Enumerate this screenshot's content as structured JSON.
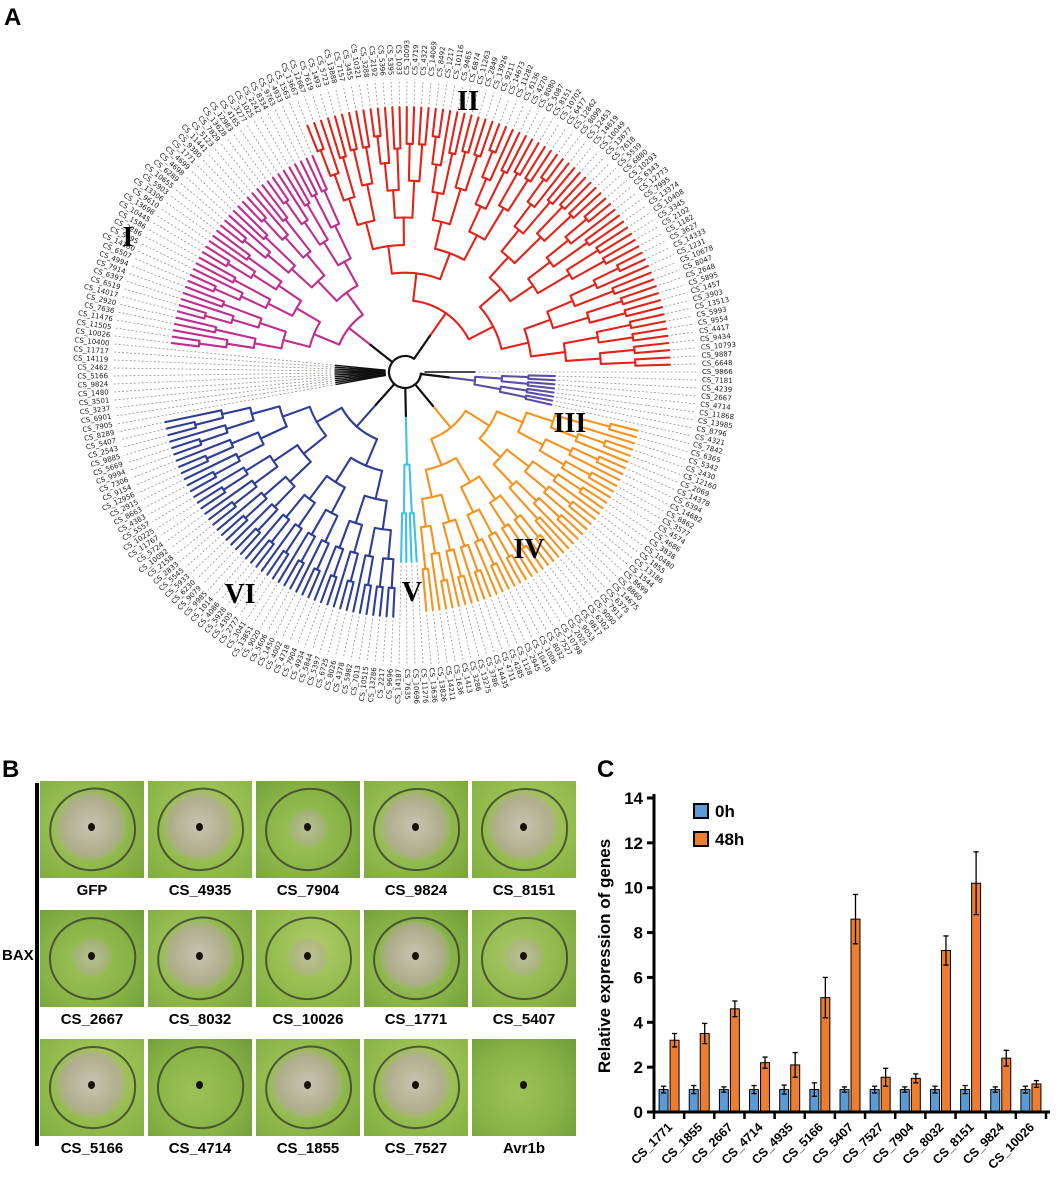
{
  "figure": {
    "panel_a_label": "A",
    "panel_b_label": "B",
    "panel_c_label": "C"
  },
  "tree": {
    "type": "circular-phylogeny",
    "clades": [
      {
        "numeral": "I",
        "color": "#bf2d8e",
        "start": 119,
        "end": 157
      },
      {
        "numeral": "II",
        "color": "#e32219",
        "start": 158,
        "end": 228
      },
      {
        "numeral": "III",
        "color": "#5b4ea8",
        "start": 1,
        "end": 8
      },
      {
        "numeral": "IV",
        "color": "#f6921e",
        "start": 9,
        "end": 54
      },
      {
        "numeral": "V",
        "color": "#3fc1e8",
        "start": 55,
        "end": 58
      },
      {
        "numeral": "VI",
        "color": "#2e3d96",
        "start": 59,
        "end": 107
      }
    ],
    "black_tip_indices": [
      0,
      108,
      109,
      110,
      111,
      112,
      113,
      114,
      115,
      116,
      117,
      118
    ],
    "tips_clockwise_from_right": [
      "CS_9866",
      "CS_7181",
      "CS_4239",
      "CS_2667",
      "CS_4714",
      "CS_11868",
      "CS_13985",
      "CS_8796",
      "CS_4321",
      "CS_7842",
      "CS_6365",
      "CS_5342",
      "CS_2430",
      "CS_12160",
      "CS_2069",
      "CS_14378",
      "CS_6394",
      "CS_14682",
      "CS_8862",
      "CS_3577",
      "CS_4574",
      "CS_4686",
      "CS_3838",
      "CS_10480",
      "CS_1855",
      "CS_13186",
      "CS_1544",
      "CS_8699",
      "CS_8860",
      "CS_14675",
      "CS_6375",
      "CS_7913",
      "CS_9090",
      "CS_6302",
      "CS_9817",
      "CS_9053",
      "CS_2025",
      "CS_10798",
      "CS_7527",
      "CS_8032",
      "CS_1006",
      "CS_10410",
      "CS_2945",
      "CS_1128",
      "CS_4285",
      "CS_4711",
      "CS_14435",
      "CS_3786",
      "CS_13275",
      "CS_3286",
      "CS_1413",
      "CS_1636",
      "CS_14211",
      "CS_13826",
      "CS_13636",
      "CS_11276",
      "CS_10696",
      "CS_7635",
      "CS_14187",
      "CS_9696",
      "CS_2217",
      "CS_13286",
      "CS_10515",
      "CS_7013",
      "CS_5982",
      "CS_4378",
      "CS_8026",
      "CS_6725",
      "CS_5397",
      "CS_5844",
      "CS_4934",
      "CS_7904",
      "CS_4718",
      "CS_4002",
      "CS_1450",
      "CS_5606",
      "CS_9020",
      "CS_13851",
      "CS_3041",
      "CS_2777",
      "CS_4305",
      "CS_5928",
      "CS_4086",
      "CS_1014",
      "CS_9985",
      "CS_9079",
      "CS_6230",
      "CS_5933",
      "CS_5545",
      "CS_2833",
      "CS_2158",
      "CS_10092",
      "CS_5724",
      "CS_11767",
      "CS_10225",
      "CS_5557",
      "CS_4383",
      "CS_8663",
      "CS_2915",
      "CS_12956",
      "CS_9154",
      "CS_7306",
      "CS_9994",
      "CS_5669",
      "CS_9885",
      "CS_2543",
      "CS_5407",
      "CS_8289",
      "CS_7905",
      "CS_6901",
      "CS_3237",
      "CS_3501",
      "CS_1480",
      "CS_9824",
      "CS_5166",
      "CS_2462",
      "CS_14119",
      "CS_11717",
      "CS_10400",
      "CS_10026",
      "CS_11505",
      "CS_11476",
      "CS_7636",
      "CS_2920",
      "CS_14017",
      "CS_6519",
      "CS_6397",
      "CS_7914",
      "CS_4994",
      "CS_6507",
      "CS_14180",
      "CS_5895",
      "CS_2286",
      "CS_1586",
      "CS_10445",
      "CS_13698",
      "CS_9610",
      "CS_13306",
      "CS_5903",
      "CS_10655",
      "CS_6289",
      "CS_4698",
      "CS_4699",
      "CS_1771",
      "CS_9380",
      "CS_11441",
      "CS_5123",
      "CS_7829",
      "CS_13628",
      "CS_12983",
      "CS_4165",
      "CS_3277",
      "CS_1025",
      "CS_2242",
      "CS_8334",
      "CS_9763",
      "CS_4933",
      "CS_1563",
      "CS_13667",
      "CS_12667",
      "CS_7619",
      "CS_1493",
      "CS_5723",
      "CS_13888",
      "CS_7157",
      "CS_3455",
      "CS_10321",
      "CS_3288",
      "CS_2192",
      "CS_5396",
      "CS_5395",
      "CS_1033",
      "CS_10093",
      "CS_4719",
      "CS_4322",
      "CS_14069",
      "CS_8492",
      "CS_1217",
      "CS_10116",
      "CS_9465",
      "CS_6874",
      "CS_11263",
      "CS_2849",
      "CS_13926",
      "CS_9211",
      "CS_14673",
      "CS_11282",
      "CS_6136",
      "CS_4270",
      "CS_8080",
      "CS_5087",
      "CS_8151",
      "CS_10702",
      "CS_6477",
      "CS_12862",
      "CS_8099",
      "CS_12453",
      "CS_14619",
      "CS_10049",
      "CS_13677",
      "CS_7618",
      "CS_5539",
      "CS_6880",
      "CS_10293",
      "CS_6343",
      "CS_12773",
      "CS_7995",
      "CS_13374",
      "CS_10408",
      "CS_3345",
      "CS_2102",
      "CS_1182",
      "CS_3627",
      "CS_14333",
      "CS_1231",
      "CS_10678",
      "CS_8047",
      "CS_2648",
      "CS_5895",
      "CS_1457",
      "CS_3903",
      "CS_13513",
      "CS_5993",
      "CS_9554",
      "CS_4417",
      "CS_9434",
      "CS_10793",
      "CS_9887",
      "CS_6648"
    ]
  },
  "panel_b": {
    "side_label": "BAX",
    "cells": [
      [
        {
          "label": "GFP",
          "necrosis": "strong",
          "circle": true
        },
        {
          "label": "CS_4935",
          "necrosis": "strong",
          "circle": true
        },
        {
          "label": "CS_7904",
          "necrosis": "mild",
          "circle": true
        },
        {
          "label": "CS_9824",
          "necrosis": "strong",
          "circle": true
        },
        {
          "label": "CS_8151",
          "necrosis": "strong",
          "circle": true
        }
      ],
      [
        {
          "label": "CS_2667",
          "necrosis": "mild",
          "circle": true
        },
        {
          "label": "CS_8032",
          "necrosis": "strong",
          "circle": true
        },
        {
          "label": "CS_10026",
          "necrosis": "mild",
          "circle": true
        },
        {
          "label": "CS_1771",
          "necrosis": "strong",
          "circle": true
        },
        {
          "label": "CS_5407",
          "necrosis": "mild",
          "circle": true
        }
      ],
      [
        {
          "label": "CS_5166",
          "necrosis": "strong",
          "circle": true
        },
        {
          "label": "CS_4714",
          "necrosis": "none",
          "circle": true
        },
        {
          "label": "CS_1855",
          "necrosis": "strong",
          "circle": true
        },
        {
          "label": "CS_7527",
          "necrosis": "strong",
          "circle": true
        },
        {
          "label": "Avr1b",
          "necrosis": "none",
          "circle": false
        }
      ]
    ]
  },
  "chart_data": {
    "type": "bar",
    "categories": [
      "CS_1771",
      "CS_1855",
      "CS_2667",
      "CS_4714",
      "CS_4935",
      "CS_5166",
      "CS_5407",
      "CS_7527",
      "CS_7904",
      "CS_8032",
      "CS_8151",
      "CS_9824",
      "CS_10026"
    ],
    "series": [
      {
        "name": "0h",
        "color": "#5b9bd5",
        "values": [
          1.0,
          1.0,
          1.0,
          1.0,
          1.0,
          1.0,
          1.0,
          1.0,
          1.0,
          1.0,
          1.0,
          1.0,
          1.0
        ],
        "errors": [
          0.15,
          0.18,
          0.12,
          0.18,
          0.2,
          0.3,
          0.12,
          0.15,
          0.12,
          0.15,
          0.18,
          0.12,
          0.15
        ]
      },
      {
        "name": "48h",
        "color": "#ed7d31",
        "values": [
          3.2,
          3.5,
          4.6,
          2.2,
          2.1,
          5.1,
          8.6,
          1.55,
          1.5,
          7.2,
          10.2,
          2.4,
          1.25
        ],
        "errors": [
          0.3,
          0.45,
          0.35,
          0.25,
          0.55,
          0.9,
          1.1,
          0.4,
          0.2,
          0.65,
          1.4,
          0.35,
          0.15
        ]
      }
    ],
    "ylabel": "Relative expression of genes",
    "xlabel": "",
    "ylim": [
      0,
      14
    ],
    "yticks": [
      0,
      2,
      4,
      6,
      8,
      10,
      12,
      14
    ],
    "grid": false,
    "legend_position": "top-left"
  }
}
